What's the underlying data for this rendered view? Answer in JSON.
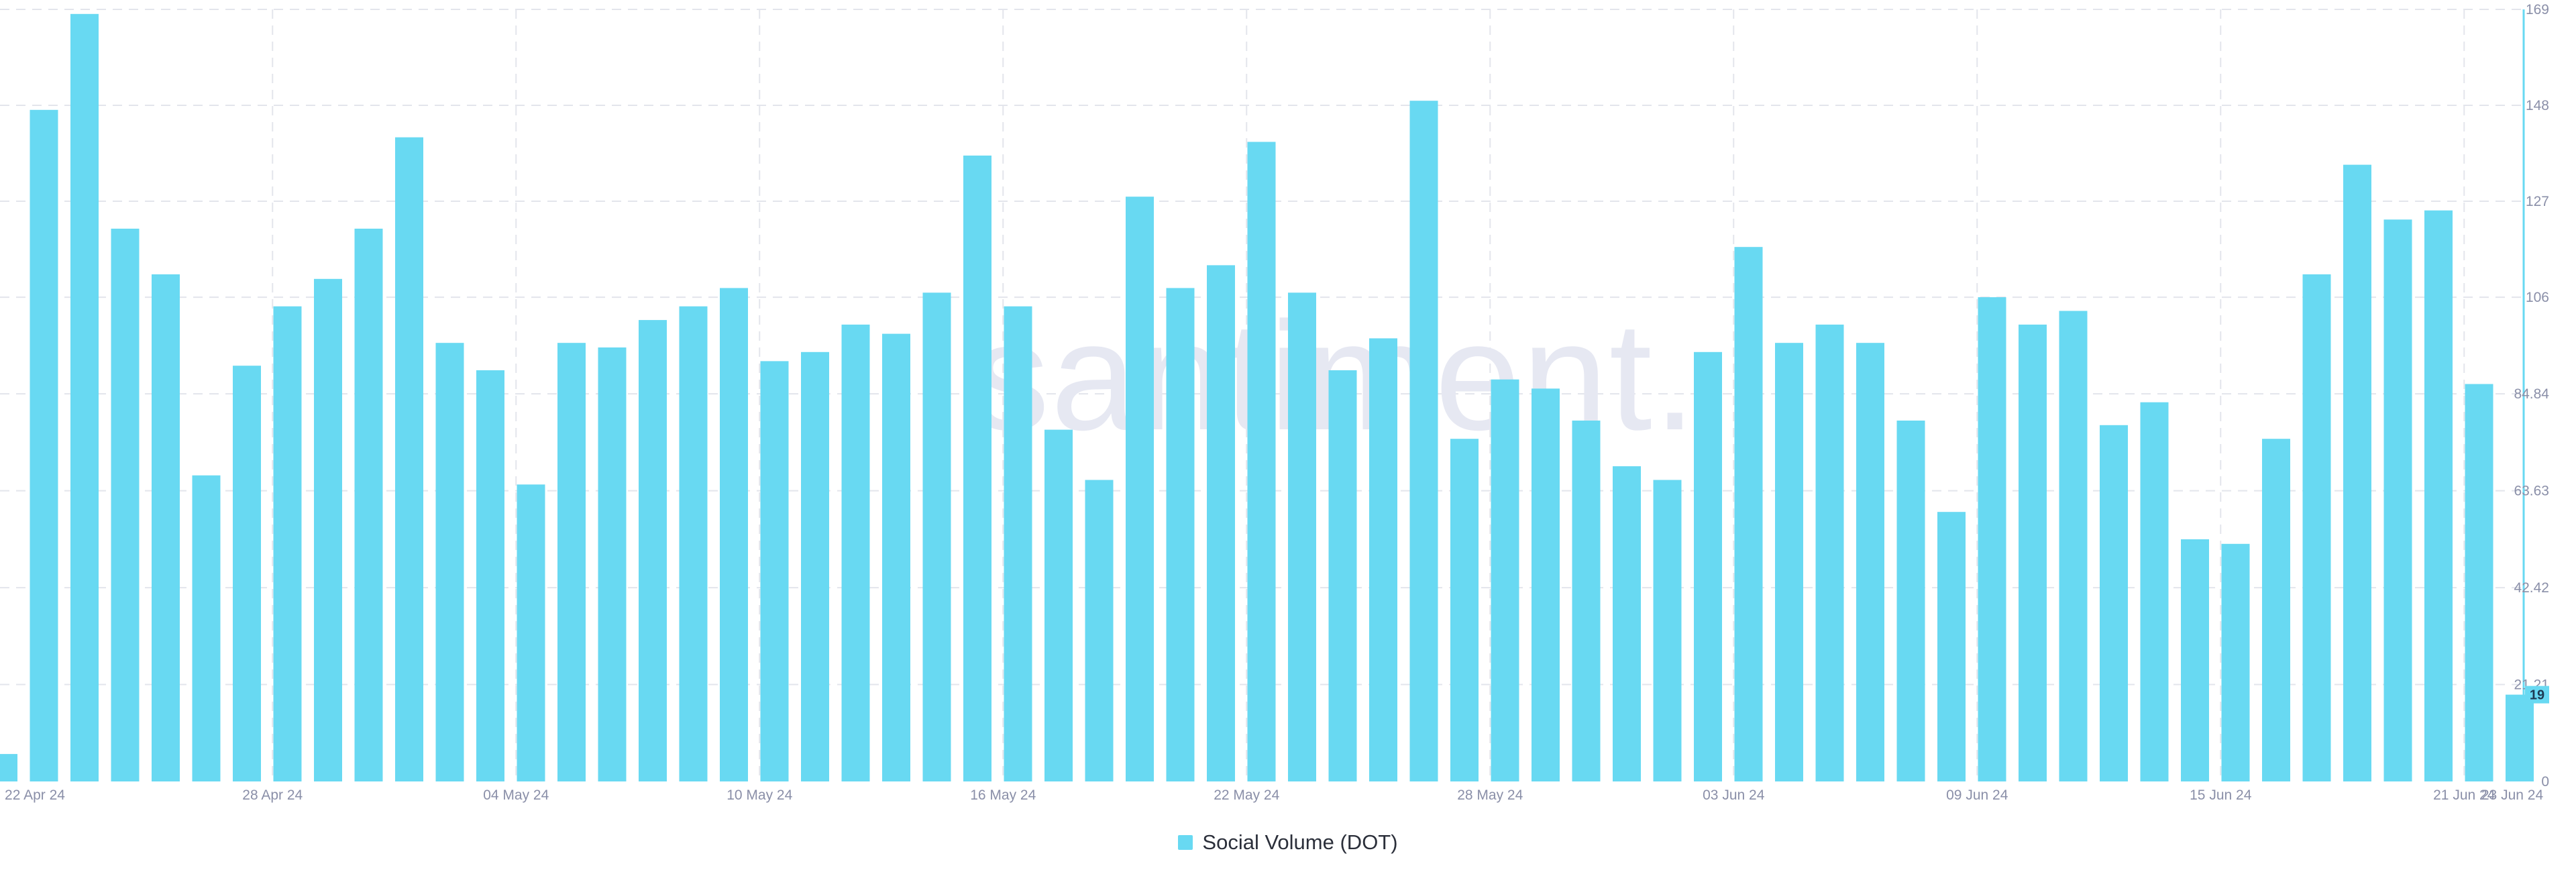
{
  "brand": {
    "watermark": "santiment."
  },
  "colors": {
    "bar": "#68d9f2",
    "grid": "#e3e5ec",
    "axis": "#68d9f2",
    "tick_text": "#8a8fa8",
    "last_value_badge": "#68d9f2"
  },
  "legend": {
    "label": "Social Volume (DOT)",
    "position": "bottom-center"
  },
  "chart_data": {
    "type": "bar",
    "title": "",
    "xlabel": "",
    "ylabel": "",
    "grid": true,
    "ylim": [
      0,
      169
    ],
    "y_ticks": [
      "0",
      "21.21",
      "42.42",
      "63.63",
      "84.84",
      "106",
      "127",
      "148",
      "169"
    ],
    "y_tick_values": [
      0,
      21.21,
      42.42,
      63.63,
      84.84,
      106,
      127,
      148,
      169
    ],
    "x_ticks": [
      "22 Apr 24",
      "28 Apr 24",
      "04 May 24",
      "10 May 24",
      "16 May 24",
      "22 May 24",
      "28 May 24",
      "03 Jun 24",
      "09 Jun 24",
      "15 Jun 24",
      "21 Jun 24",
      "23 Jun 24"
    ],
    "x_tick_indices": [
      0,
      6,
      12,
      18,
      24,
      30,
      36,
      42,
      48,
      54,
      60,
      62
    ],
    "categories": [
      "21 Apr 24",
      "22 Apr 24",
      "23 Apr 24",
      "24 Apr 24",
      "25 Apr 24",
      "26 Apr 24",
      "27 Apr 24",
      "28 Apr 24",
      "29 Apr 24",
      "30 Apr 24",
      "01 May 24",
      "02 May 24",
      "03 May 24",
      "04 May 24",
      "05 May 24",
      "06 May 24",
      "07 May 24",
      "08 May 24",
      "09 May 24",
      "10 May 24",
      "11 May 24",
      "12 May 24",
      "13 May 24",
      "14 May 24",
      "15 May 24",
      "16 May 24",
      "17 May 24",
      "18 May 24",
      "19 May 24",
      "20 May 24",
      "21 May 24",
      "22 May 24",
      "23 May 24",
      "24 May 24",
      "25 May 24",
      "26 May 24",
      "27 May 24",
      "28 May 24",
      "29 May 24",
      "30 May 24",
      "31 May 24",
      "01 Jun 24",
      "02 Jun 24",
      "03 Jun 24",
      "04 Jun 24",
      "05 Jun 24",
      "06 Jun 24",
      "07 Jun 24",
      "08 Jun 24",
      "09 Jun 24",
      "10 Jun 24",
      "11 Jun 24",
      "12 Jun 24",
      "13 Jun 24",
      "14 Jun 24",
      "15 Jun 24",
      "16 Jun 24",
      "17 Jun 24",
      "18 Jun 24",
      "19 Jun 24",
      "20 Jun 24",
      "21 Jun 24",
      "22 Jun 24"
    ],
    "series": [
      {
        "name": "Social Volume (DOT)",
        "values": [
          6,
          147,
          168,
          121,
          111,
          67,
          91,
          104,
          110,
          121,
          141,
          96,
          90,
          65,
          96,
          95,
          101,
          104,
          108,
          92,
          94,
          100,
          98,
          107,
          137,
          104,
          77,
          66,
          128,
          108,
          113,
          140,
          107,
          90,
          97,
          149,
          75,
          88,
          86,
          79,
          69,
          66,
          94,
          117,
          96,
          100,
          96,
          79,
          59,
          106,
          100,
          103,
          78,
          83,
          53,
          52,
          75,
          111,
          135,
          123,
          125,
          87,
          19
        ]
      }
    ],
    "last_value_label": "19"
  }
}
